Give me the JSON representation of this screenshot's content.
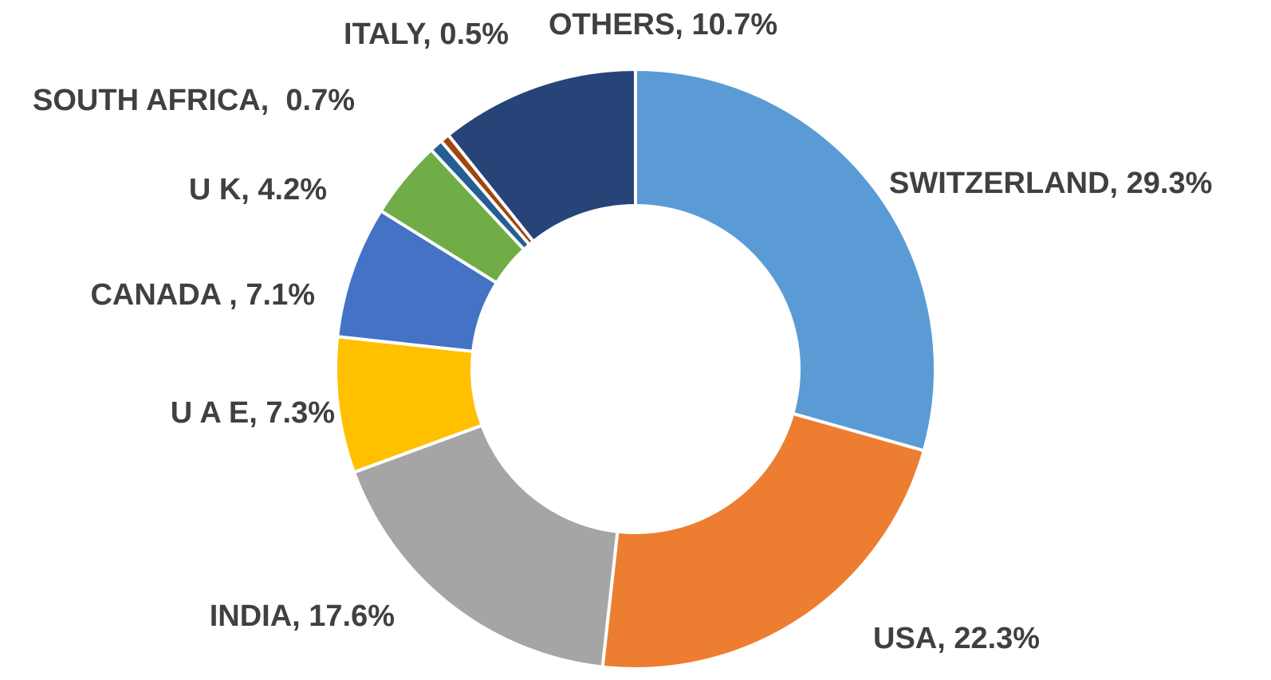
{
  "chart_data": {
    "type": "donut",
    "values": [
      29.3,
      22.3,
      17.6,
      7.3,
      7.1,
      4.2,
      0.7,
      0.5,
      10.7
    ],
    "value_labels": [
      "SWITZERLAND, 29.3%",
      "USA, 22.3%",
      "INDIA, 17.6%",
      "U A E, 7.3%",
      "CANADA , 7.1%",
      "U K, 4.2%",
      "SOUTH AFRICA,  0.7%",
      "ITALY, 0.5%",
      "OTHERS, 10.7%"
    ],
    "colors": [
      "#5b9bd5",
      "#ed7d31",
      "#a5a5a5",
      "#ffc000",
      "#4472c4",
      "#70ad47",
      "#255e91",
      "#9e480e",
      "#264478"
    ]
  }
}
